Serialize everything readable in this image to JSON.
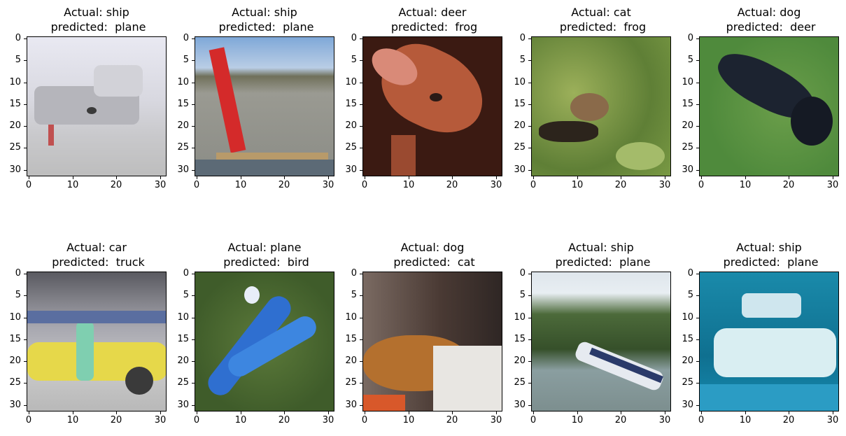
{
  "figure": {
    "panels": [
      {
        "actual_line": "Actual: ship",
        "predicted_line": " predicted:  plane",
        "image": "ship-dock-icon"
      },
      {
        "actual_line": "Actual: ship",
        "predicted_line": " predicted:  plane",
        "image": "red-crane-icon"
      },
      {
        "actual_line": "Actual: deer",
        "predicted_line": " predicted:  frog",
        "image": "deer-head-icon"
      },
      {
        "actual_line": "Actual: cat",
        "predicted_line": " predicted:  frog",
        "image": "cat-grass-icon"
      },
      {
        "actual_line": "Actual: dog",
        "predicted_line": " predicted:  deer",
        "image": "black-dog-icon"
      },
      {
        "actual_line": "Actual: car",
        "predicted_line": " predicted:  truck",
        "image": "yellow-car-icon"
      },
      {
        "actual_line": "Actual: plane",
        "predicted_line": " predicted:  bird",
        "image": "blue-plane-icon"
      },
      {
        "actual_line": "Actual: dog",
        "predicted_line": " predicted:  cat",
        "image": "brown-dog-icon"
      },
      {
        "actual_line": "Actual: ship",
        "predicted_line": " predicted:  plane",
        "image": "river-boat-icon"
      },
      {
        "actual_line": "Actual: ship",
        "predicted_line": " predicted:  plane",
        "image": "white-boat-icon"
      }
    ],
    "y_ticks": [
      "0",
      "5",
      "10",
      "15",
      "20",
      "25",
      "30"
    ],
    "x_ticks": [
      "0",
      "10",
      "20",
      "30"
    ]
  }
}
